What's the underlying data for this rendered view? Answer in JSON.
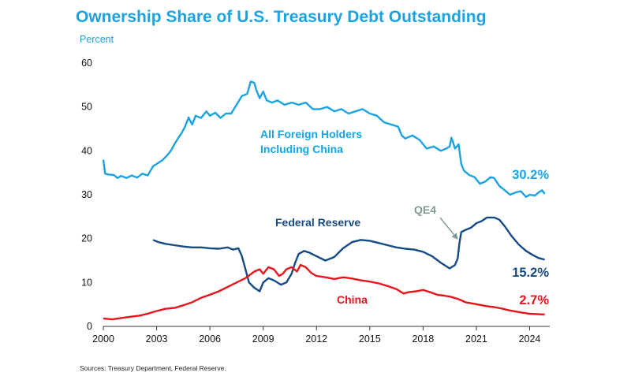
{
  "title": "Ownership Share of U.S. Treasury Debt Outstanding",
  "subtitle": "Percent",
  "source": "Sources: Treasury Department, Federal Reserve.",
  "colors": {
    "foreign": "#1aa3e0",
    "fed": "#164a84",
    "china": "#e8141b",
    "qe4": "#7f9a92"
  },
  "chart_data": {
    "type": "line",
    "xlim": [
      2000,
      2025
    ],
    "ylim": [
      0,
      60
    ],
    "x_ticks": [
      "2000",
      "2003",
      "2006",
      "2009",
      "2012",
      "2015",
      "2018",
      "2021",
      "2024"
    ],
    "y_ticks": [
      "0",
      "10",
      "20",
      "30",
      "40",
      "50",
      "60"
    ],
    "grid": false,
    "series": [
      {
        "key": "foreign",
        "label_lines": [
          "All Foreign Holders",
          "Including China"
        ],
        "end_label": "30.2%",
        "points": [
          [
            2000.0,
            38.0
          ],
          [
            2000.1,
            34.8
          ],
          [
            2000.3,
            34.6
          ],
          [
            2000.6,
            34.5
          ],
          [
            2000.8,
            33.8
          ],
          [
            2001.0,
            34.3
          ],
          [
            2001.3,
            33.8
          ],
          [
            2001.6,
            34.4
          ],
          [
            2001.9,
            33.9
          ],
          [
            2002.2,
            34.8
          ],
          [
            2002.5,
            34.4
          ],
          [
            2002.8,
            36.5
          ],
          [
            2003.0,
            37.0
          ],
          [
            2003.3,
            37.8
          ],
          [
            2003.6,
            39.0
          ],
          [
            2003.8,
            40.0
          ],
          [
            2004.0,
            41.5
          ],
          [
            2004.2,
            42.8
          ],
          [
            2004.4,
            44.0
          ],
          [
            2004.6,
            45.5
          ],
          [
            2004.8,
            47.6
          ],
          [
            2005.0,
            46.0
          ],
          [
            2005.2,
            48.0
          ],
          [
            2005.5,
            47.5
          ],
          [
            2005.8,
            49.0
          ],
          [
            2006.0,
            48.0
          ],
          [
            2006.3,
            48.7
          ],
          [
            2006.6,
            47.5
          ],
          [
            2006.9,
            48.5
          ],
          [
            2007.2,
            48.5
          ],
          [
            2007.5,
            50.5
          ],
          [
            2007.8,
            52.5
          ],
          [
            2008.1,
            53.0
          ],
          [
            2008.3,
            55.8
          ],
          [
            2008.5,
            55.5
          ],
          [
            2008.6,
            54.0
          ],
          [
            2008.8,
            52.0
          ],
          [
            2009.0,
            53.5
          ],
          [
            2009.2,
            51.5
          ],
          [
            2009.5,
            51.0
          ],
          [
            2009.8,
            51.5
          ],
          [
            2010.2,
            50.5
          ],
          [
            2010.6,
            51.0
          ],
          [
            2011.0,
            50.5
          ],
          [
            2011.4,
            51.0
          ],
          [
            2011.8,
            49.5
          ],
          [
            2012.2,
            49.5
          ],
          [
            2012.6,
            50.0
          ],
          [
            2013.0,
            49.0
          ],
          [
            2013.4,
            49.5
          ],
          [
            2013.8,
            48.5
          ],
          [
            2014.2,
            49.0
          ],
          [
            2014.6,
            49.5
          ],
          [
            2015.0,
            48.5
          ],
          [
            2015.4,
            48.0
          ],
          [
            2015.8,
            46.5
          ],
          [
            2016.2,
            46.0
          ],
          [
            2016.6,
            45.5
          ],
          [
            2016.8,
            43.5
          ],
          [
            2017.0,
            42.8
          ],
          [
            2017.4,
            43.5
          ],
          [
            2017.8,
            42.5
          ],
          [
            2018.2,
            40.5
          ],
          [
            2018.6,
            41.0
          ],
          [
            2019.0,
            40.0
          ],
          [
            2019.3,
            40.5
          ],
          [
            2019.5,
            41.0
          ],
          [
            2019.6,
            43.0
          ],
          [
            2019.8,
            40.5
          ],
          [
            2020.0,
            41.5
          ],
          [
            2020.15,
            37.0
          ],
          [
            2020.3,
            35.5
          ],
          [
            2020.6,
            34.5
          ],
          [
            2020.9,
            34.0
          ],
          [
            2021.2,
            32.5
          ],
          [
            2021.5,
            33.0
          ],
          [
            2021.8,
            34.0
          ],
          [
            2022.0,
            33.8
          ],
          [
            2022.3,
            32.0
          ],
          [
            2022.6,
            31.0
          ],
          [
            2022.9,
            30.0
          ],
          [
            2023.2,
            30.5
          ],
          [
            2023.5,
            30.8
          ],
          [
            2023.8,
            29.5
          ],
          [
            2024.0,
            30.0
          ],
          [
            2024.3,
            29.8
          ],
          [
            2024.5,
            30.5
          ],
          [
            2024.7,
            31.0
          ],
          [
            2024.85,
            30.2
          ]
        ]
      },
      {
        "key": "fed",
        "label": "Federal Reserve",
        "end_label": "15.2%",
        "points": [
          [
            2002.8,
            19.7
          ],
          [
            2003.1,
            19.2
          ],
          [
            2003.5,
            18.8
          ],
          [
            2004.0,
            18.5
          ],
          [
            2004.5,
            18.2
          ],
          [
            2005.0,
            18.0
          ],
          [
            2005.5,
            18.0
          ],
          [
            2006.0,
            17.8
          ],
          [
            2006.5,
            17.7
          ],
          [
            2007.0,
            18.0
          ],
          [
            2007.3,
            17.5
          ],
          [
            2007.6,
            17.8
          ],
          [
            2007.8,
            16.0
          ],
          [
            2008.0,
            13.0
          ],
          [
            2008.2,
            10.0
          ],
          [
            2008.5,
            8.8
          ],
          [
            2008.8,
            8.0
          ],
          [
            2009.0,
            10.0
          ],
          [
            2009.3,
            11.0
          ],
          [
            2009.6,
            10.5
          ],
          [
            2010.0,
            9.5
          ],
          [
            2010.3,
            10.0
          ],
          [
            2010.6,
            12.0
          ],
          [
            2010.8,
            14.5
          ],
          [
            2011.0,
            16.5
          ],
          [
            2011.3,
            17.2
          ],
          [
            2011.6,
            16.8
          ],
          [
            2012.0,
            16.0
          ],
          [
            2012.5,
            15.0
          ],
          [
            2013.0,
            15.8
          ],
          [
            2013.5,
            17.8
          ],
          [
            2014.0,
            19.2
          ],
          [
            2014.5,
            19.7
          ],
          [
            2015.0,
            19.5
          ],
          [
            2015.5,
            19.0
          ],
          [
            2016.0,
            18.5
          ],
          [
            2016.5,
            18.0
          ],
          [
            2017.0,
            17.7
          ],
          [
            2017.5,
            17.5
          ],
          [
            2018.0,
            17.0
          ],
          [
            2018.5,
            16.0
          ],
          [
            2019.0,
            14.5
          ],
          [
            2019.5,
            13.2
          ],
          [
            2019.8,
            14.0
          ],
          [
            2019.95,
            15.5
          ],
          [
            2020.05,
            19.0
          ],
          [
            2020.15,
            21.5
          ],
          [
            2020.4,
            22.0
          ],
          [
            2020.7,
            22.5
          ],
          [
            2021.0,
            23.5
          ],
          [
            2021.3,
            24.0
          ],
          [
            2021.6,
            24.8
          ],
          [
            2022.0,
            24.8
          ],
          [
            2022.3,
            24.3
          ],
          [
            2022.6,
            22.8
          ],
          [
            2023.0,
            20.5
          ],
          [
            2023.4,
            18.6
          ],
          [
            2023.8,
            17.2
          ],
          [
            2024.2,
            16.2
          ],
          [
            2024.5,
            15.6
          ],
          [
            2024.85,
            15.2
          ]
        ]
      },
      {
        "key": "china",
        "label": "China",
        "end_label": "2.7%",
        "points": [
          [
            2000.0,
            1.8
          ],
          [
            2000.5,
            1.6
          ],
          [
            2001.0,
            1.9
          ],
          [
            2001.5,
            2.2
          ],
          [
            2002.0,
            2.4
          ],
          [
            2002.5,
            2.9
          ],
          [
            2003.0,
            3.5
          ],
          [
            2003.5,
            4.0
          ],
          [
            2004.0,
            4.2
          ],
          [
            2004.5,
            4.8
          ],
          [
            2005.0,
            5.5
          ],
          [
            2005.5,
            6.5
          ],
          [
            2006.0,
            7.2
          ],
          [
            2006.5,
            8.0
          ],
          [
            2007.0,
            9.0
          ],
          [
            2007.5,
            10.0
          ],
          [
            2008.0,
            11.0
          ],
          [
            2008.5,
            12.5
          ],
          [
            2008.8,
            13.0
          ],
          [
            2009.0,
            12.0
          ],
          [
            2009.3,
            13.5
          ],
          [
            2009.6,
            13.0
          ],
          [
            2009.9,
            11.5
          ],
          [
            2010.1,
            12.0
          ],
          [
            2010.3,
            13.0
          ],
          [
            2010.6,
            13.5
          ],
          [
            2010.9,
            12.5
          ],
          [
            2011.1,
            14.0
          ],
          [
            2011.4,
            13.5
          ],
          [
            2011.7,
            12.2
          ],
          [
            2012.0,
            11.5
          ],
          [
            2012.5,
            11.2
          ],
          [
            2013.0,
            10.8
          ],
          [
            2013.5,
            11.2
          ],
          [
            2014.0,
            10.9
          ],
          [
            2014.5,
            10.5
          ],
          [
            2015.0,
            10.2
          ],
          [
            2015.5,
            9.8
          ],
          [
            2016.0,
            9.2
          ],
          [
            2016.5,
            8.5
          ],
          [
            2016.9,
            7.5
          ],
          [
            2017.2,
            7.8
          ],
          [
            2017.6,
            8.0
          ],
          [
            2018.0,
            8.3
          ],
          [
            2018.4,
            7.8
          ],
          [
            2018.8,
            7.2
          ],
          [
            2019.2,
            7.0
          ],
          [
            2019.6,
            6.7
          ],
          [
            2020.0,
            6.2
          ],
          [
            2020.4,
            5.5
          ],
          [
            2020.8,
            5.2
          ],
          [
            2021.2,
            4.9
          ],
          [
            2021.6,
            4.6
          ],
          [
            2022.0,
            4.4
          ],
          [
            2022.4,
            4.1
          ],
          [
            2022.8,
            3.7
          ],
          [
            2023.2,
            3.4
          ],
          [
            2023.6,
            3.1
          ],
          [
            2024.0,
            2.9
          ],
          [
            2024.4,
            2.8
          ],
          [
            2024.85,
            2.7
          ]
        ]
      }
    ],
    "annotation": {
      "text": "QE4",
      "target": [
        2020.0,
        19.5
      ]
    }
  }
}
